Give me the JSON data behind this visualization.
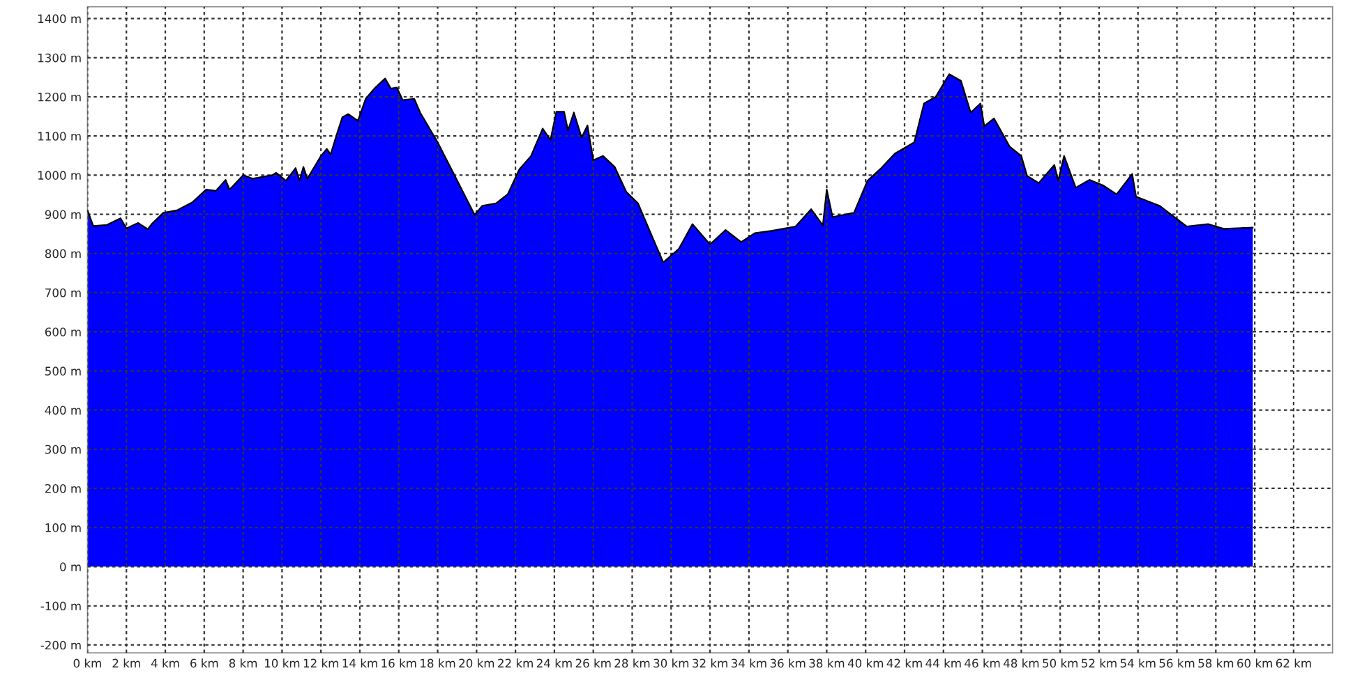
{
  "chart_data": {
    "type": "area",
    "x": [
      0.0,
      0.3,
      1.0,
      1.7,
      2.0,
      2.6,
      3.1,
      3.3,
      3.9,
      4.6,
      5.4,
      6.1,
      6.6,
      7.1,
      7.3,
      8.0,
      8.5,
      9.5,
      9.7,
      10.2,
      10.7,
      10.9,
      11.1,
      11.3,
      12.0,
      12.3,
      12.5,
      12.8,
      13.1,
      13.4,
      13.9,
      14.3,
      14.8,
      15.3,
      15.6,
      15.9,
      16.2,
      16.8,
      17.1,
      18.0,
      19.9,
      20.3,
      21.0,
      21.6,
      22.2,
      22.8,
      23.4,
      23.8,
      24.1,
      24.5,
      24.7,
      25.0,
      25.4,
      25.7,
      26.0,
      26.5,
      27.1,
      27.7,
      28.3,
      29.2,
      29.6,
      30.4,
      31.1,
      32.0,
      32.8,
      33.6,
      34.3,
      35.2,
      36.4,
      37.2,
      37.8,
      38.0,
      38.3,
      39.4,
      40.1,
      40.8,
      41.5,
      42.5,
      43.0,
      43.6,
      44.3,
      44.9,
      45.4,
      45.9,
      46.1,
      46.6,
      47.4,
      48.0,
      48.3,
      48.9,
      49.7,
      49.9,
      50.2,
      50.8,
      51.5,
      52.2,
      52.9,
      53.7,
      53.9,
      55.1,
      56.5,
      57.6,
      58.4,
      59.9
    ],
    "series": [
      {
        "color": "#0000ff",
        "values": [
          910,
          870,
          873,
          890,
          864,
          878,
          862,
          875,
          904,
          910,
          931,
          963,
          960,
          988,
          963,
          1000,
          991,
          1000,
          1006,
          986,
          1018,
          986,
          1021,
          991,
          1049,
          1067,
          1053,
          1102,
          1148,
          1156,
          1139,
          1195,
          1224,
          1247,
          1221,
          1224,
          1192,
          1195,
          1160,
          1084,
          899,
          922,
          928,
          951,
          1015,
          1049,
          1119,
          1090,
          1162,
          1162,
          1114,
          1160,
          1096,
          1127,
          1038,
          1049,
          1021,
          957,
          928,
          823,
          777,
          812,
          875,
          823,
          860,
          829,
          852,
          858,
          869,
          913,
          872,
          963,
          893,
          904,
          986,
          1018,
          1055,
          1084,
          1183,
          1200,
          1258,
          1241,
          1160,
          1183,
          1125,
          1145,
          1073,
          1049,
          998,
          980,
          1026,
          986,
          1049,
          968,
          988,
          974,
          951,
          1003,
          945,
          922,
          869,
          875,
          863,
          866
        ]
      }
    ],
    "xlim": [
      0,
      64
    ],
    "ylim": [
      -220,
      1430
    ],
    "xticks": [
      {
        "value": 0,
        "label": "0 km"
      },
      {
        "value": 2,
        "label": "2 km"
      },
      {
        "value": 4,
        "label": "4 km"
      },
      {
        "value": 6,
        "label": "6 km"
      },
      {
        "value": 8,
        "label": "8 km"
      },
      {
        "value": 10,
        "label": "10 km"
      },
      {
        "value": 12,
        "label": "12 km"
      },
      {
        "value": 14,
        "label": "14 km"
      },
      {
        "value": 16,
        "label": "16 km"
      },
      {
        "value": 18,
        "label": "18 km"
      },
      {
        "value": 20,
        "label": "20 km"
      },
      {
        "value": 22,
        "label": "22 km"
      },
      {
        "value": 24,
        "label": "24 km"
      },
      {
        "value": 26,
        "label": "26 km"
      },
      {
        "value": 28,
        "label": "28 km"
      },
      {
        "value": 30,
        "label": "30 km"
      },
      {
        "value": 32,
        "label": "32 km"
      },
      {
        "value": 34,
        "label": "34 km"
      },
      {
        "value": 36,
        "label": "36 km"
      },
      {
        "value": 38,
        "label": "38 km"
      },
      {
        "value": 40,
        "label": "40 km"
      },
      {
        "value": 42,
        "label": "42 km"
      },
      {
        "value": 44,
        "label": "44 km"
      },
      {
        "value": 46,
        "label": "46 km"
      },
      {
        "value": 48,
        "label": "48 km"
      },
      {
        "value": 50,
        "label": "50 km"
      },
      {
        "value": 52,
        "label": "52 km"
      },
      {
        "value": 54,
        "label": "54 km"
      },
      {
        "value": 56,
        "label": "56 km"
      },
      {
        "value": 58,
        "label": "58 km"
      },
      {
        "value": 60,
        "label": "60 km"
      },
      {
        "value": 62,
        "label": "62 km"
      }
    ],
    "yticks": [
      {
        "value": -200,
        "label": "-200 m"
      },
      {
        "value": -100,
        "label": "-100 m"
      },
      {
        "value": 0,
        "label": "0 m"
      },
      {
        "value": 100,
        "label": "100 m"
      },
      {
        "value": 200,
        "label": "200 m"
      },
      {
        "value": 300,
        "label": "300 m"
      },
      {
        "value": 400,
        "label": "400 m"
      },
      {
        "value": 500,
        "label": "500 m"
      },
      {
        "value": 600,
        "label": "600 m"
      },
      {
        "value": 700,
        "label": "700 m"
      },
      {
        "value": 800,
        "label": "800 m"
      },
      {
        "value": 900,
        "label": "900 m"
      },
      {
        "value": 1000,
        "label": "1000 m"
      },
      {
        "value": 1100,
        "label": "1100 m"
      },
      {
        "value": 1200,
        "label": "1200 m"
      },
      {
        "value": 1300,
        "label": "1300 m"
      },
      {
        "value": 1400,
        "label": "1400 m"
      }
    ],
    "grid": true
  }
}
